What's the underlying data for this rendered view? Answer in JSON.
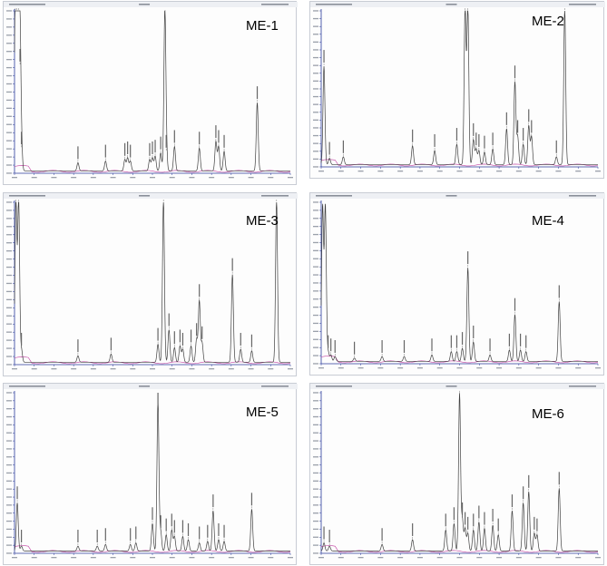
{
  "chart_data": [
    {
      "type": "line",
      "title": "ME-1",
      "colors": {
        "trace": "#404040",
        "baseline": "#c040a0",
        "axis": "#2a3a9a",
        "frame": "#c8ccd4"
      },
      "xlim": [
        0,
        100
      ],
      "ylim": [
        0,
        100
      ],
      "peaks": [
        {
          "x": 0.3,
          "y": 100
        },
        {
          "x": 0.9,
          "y": 100
        },
        {
          "x": 1.5,
          "y": 100
        },
        {
          "x": 2.0,
          "y": 65
        },
        {
          "x": 2.5,
          "y": 14
        },
        {
          "x": 23,
          "y": 5
        },
        {
          "x": 33,
          "y": 6
        },
        {
          "x": 40,
          "y": 7
        },
        {
          "x": 41,
          "y": 8
        },
        {
          "x": 42,
          "y": 6
        },
        {
          "x": 49,
          "y": 7
        },
        {
          "x": 50,
          "y": 8
        },
        {
          "x": 51,
          "y": 9
        },
        {
          "x": 53,
          "y": 11
        },
        {
          "x": 54.5,
          "y": 96
        },
        {
          "x": 55,
          "y": 12
        },
        {
          "x": 58,
          "y": 15
        },
        {
          "x": 67,
          "y": 14
        },
        {
          "x": 73,
          "y": 18
        },
        {
          "x": 74,
          "y": 15
        },
        {
          "x": 76,
          "y": 12
        },
        {
          "x": 88,
          "y": 42
        }
      ]
    },
    {
      "type": "line",
      "title": "ME-2",
      "colors": {
        "trace": "#404040",
        "baseline": "#c040a0",
        "axis": "#2a3a9a",
        "frame": "#c8ccd4"
      },
      "xlim": [
        0,
        100
      ],
      "ylim": [
        0,
        100
      ],
      "peaks": [
        {
          "x": 1,
          "y": 63
        },
        {
          "x": 3,
          "y": 4
        },
        {
          "x": 8,
          "y": 5
        },
        {
          "x": 33,
          "y": 12
        },
        {
          "x": 41,
          "y": 9
        },
        {
          "x": 49,
          "y": 13
        },
        {
          "x": 52,
          "y": 100
        },
        {
          "x": 53,
          "y": 100
        },
        {
          "x": 55,
          "y": 16
        },
        {
          "x": 56,
          "y": 10
        },
        {
          "x": 57,
          "y": 9
        },
        {
          "x": 59,
          "y": 8
        },
        {
          "x": 62,
          "y": 10
        },
        {
          "x": 67,
          "y": 23
        },
        {
          "x": 70,
          "y": 53
        },
        {
          "x": 71,
          "y": 18
        },
        {
          "x": 73,
          "y": 13
        },
        {
          "x": 75,
          "y": 25
        },
        {
          "x": 76,
          "y": 18
        },
        {
          "x": 85,
          "y": 5
        },
        {
          "x": 88,
          "y": 100
        }
      ]
    },
    {
      "type": "line",
      "title": "ME-3",
      "colors": {
        "trace": "#404040",
        "baseline": "#c040a0",
        "axis": "#2a3a9a",
        "frame": "#c8ccd4"
      },
      "xlim": [
        0,
        100
      ],
      "ylim": [
        0,
        100
      ],
      "peaks": [
        {
          "x": 0.5,
          "y": 100
        },
        {
          "x": 1.5,
          "y": 100
        },
        {
          "x": 2.5,
          "y": 8
        },
        {
          "x": 23,
          "y": 4
        },
        {
          "x": 35,
          "y": 5
        },
        {
          "x": 52,
          "y": 11
        },
        {
          "x": 54,
          "y": 100
        },
        {
          "x": 56,
          "y": 20
        },
        {
          "x": 58,
          "y": 9
        },
        {
          "x": 60,
          "y": 10
        },
        {
          "x": 61,
          "y": 8
        },
        {
          "x": 64,
          "y": 10
        },
        {
          "x": 66,
          "y": 14
        },
        {
          "x": 67,
          "y": 38
        },
        {
          "x": 68,
          "y": 12
        },
        {
          "x": 79,
          "y": 54
        },
        {
          "x": 82,
          "y": 8
        },
        {
          "x": 86,
          "y": 7
        },
        {
          "x": 95,
          "y": 100
        }
      ]
    },
    {
      "type": "line",
      "title": "ME-4",
      "colors": {
        "trace": "#404040",
        "baseline": "#c040a0",
        "axis": "#2a3a9a",
        "frame": "#c8ccd4"
      },
      "xlim": [
        0,
        100
      ],
      "ylim": [
        0,
        100
      ],
      "peaks": [
        {
          "x": 0.5,
          "y": 96
        },
        {
          "x": 1.5,
          "y": 96
        },
        {
          "x": 2.5,
          "y": 6
        },
        {
          "x": 3.5,
          "y": 4
        },
        {
          "x": 5,
          "y": 3
        },
        {
          "x": 12,
          "y": 2
        },
        {
          "x": 22,
          "y": 3
        },
        {
          "x": 30,
          "y": 3
        },
        {
          "x": 40,
          "y": 4
        },
        {
          "x": 47,
          "y": 6
        },
        {
          "x": 49,
          "y": 6
        },
        {
          "x": 51,
          "y": 8
        },
        {
          "x": 53,
          "y": 58
        },
        {
          "x": 55,
          "y": 12
        },
        {
          "x": 61,
          "y": 4
        },
        {
          "x": 68,
          "y": 7
        },
        {
          "x": 70,
          "y": 29
        },
        {
          "x": 72,
          "y": 7
        },
        {
          "x": 74,
          "y": 6
        },
        {
          "x": 86,
          "y": 37
        }
      ]
    },
    {
      "type": "line",
      "title": "ME-5",
      "colors": {
        "trace": "#404040",
        "baseline": "#c040a0",
        "axis": "#2a3a9a",
        "frame": "#c8ccd4"
      },
      "xlim": [
        0,
        100
      ],
      "ylim": [
        0,
        100
      ],
      "peaks": [
        {
          "x": 1,
          "y": 30
        },
        {
          "x": 2.5,
          "y": 3
        },
        {
          "x": 23,
          "y": 3
        },
        {
          "x": 30,
          "y": 3
        },
        {
          "x": 33,
          "y": 4
        },
        {
          "x": 42,
          "y": 4
        },
        {
          "x": 44,
          "y": 5
        },
        {
          "x": 50,
          "y": 17
        },
        {
          "x": 52,
          "y": 93
        },
        {
          "x": 53,
          "y": 12
        },
        {
          "x": 55,
          "y": 10
        },
        {
          "x": 57,
          "y": 13
        },
        {
          "x": 58,
          "y": 9
        },
        {
          "x": 61,
          "y": 9
        },
        {
          "x": 63,
          "y": 7
        },
        {
          "x": 67,
          "y": 5
        },
        {
          "x": 70,
          "y": 6
        },
        {
          "x": 72,
          "y": 25
        },
        {
          "x": 74,
          "y": 7
        },
        {
          "x": 76,
          "y": 6
        },
        {
          "x": 86,
          "y": 26
        }
      ]
    },
    {
      "type": "line",
      "title": "ME-6",
      "colors": {
        "trace": "#404040",
        "baseline": "#c040a0",
        "axis": "#2a3a9a",
        "frame": "#c8ccd4"
      },
      "xlim": [
        0,
        100
      ],
      "ylim": [
        0,
        100
      ],
      "peaks": [
        {
          "x": 1,
          "y": 5
        },
        {
          "x": 3,
          "y": 3
        },
        {
          "x": 22,
          "y": 4
        },
        {
          "x": 33,
          "y": 7
        },
        {
          "x": 45,
          "y": 13
        },
        {
          "x": 48,
          "y": 17
        },
        {
          "x": 50,
          "y": 98
        },
        {
          "x": 51,
          "y": 20
        },
        {
          "x": 52,
          "y": 14
        },
        {
          "x": 53,
          "y": 11
        },
        {
          "x": 55,
          "y": 13
        },
        {
          "x": 57,
          "y": 18
        },
        {
          "x": 59,
          "y": 14
        },
        {
          "x": 62,
          "y": 16
        },
        {
          "x": 64,
          "y": 10
        },
        {
          "x": 69,
          "y": 25
        },
        {
          "x": 73,
          "y": 30
        },
        {
          "x": 75,
          "y": 37
        },
        {
          "x": 77,
          "y": 11
        },
        {
          "x": 78,
          "y": 10
        },
        {
          "x": 86,
          "y": 39
        }
      ]
    }
  ]
}
